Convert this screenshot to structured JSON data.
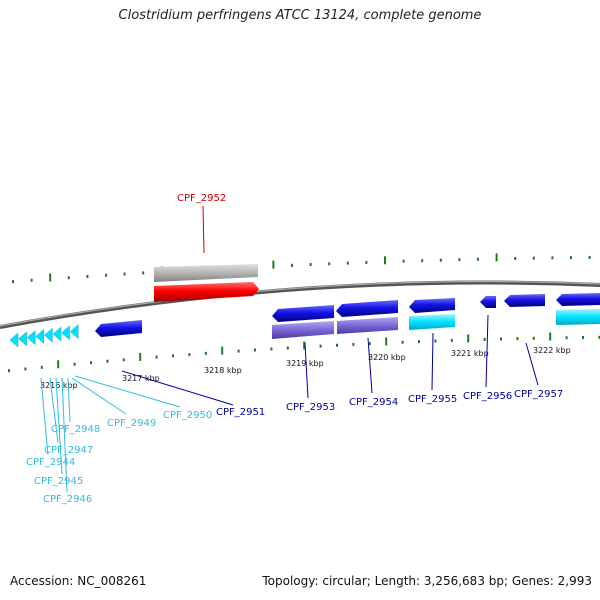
{
  "title": "Clostridium perfringens ATCC 13124, complete genome",
  "footer": {
    "accession": "Accession: NC_008261",
    "topology": "Topology: circular; Length: 3,256,683 bp; Genes: 2,993"
  },
  "kbp_labels": [
    "3216 kbp",
    "3217 kbp",
    "3218 kbp",
    "3219 kbp",
    "3220 kbp",
    "3221 kbp",
    "3222 kbp"
  ],
  "genes": [
    {
      "id": "CPF_2944",
      "color": "#33bbdd"
    },
    {
      "id": "CPF_2945",
      "color": "#33bbdd"
    },
    {
      "id": "CPF_2946",
      "color": "#33bbdd"
    },
    {
      "id": "CPF_2947",
      "color": "#33bbdd"
    },
    {
      "id": "CPF_2948",
      "color": "#33bbdd"
    },
    {
      "id": "CPF_2949",
      "color": "#33bbdd"
    },
    {
      "id": "CPF_2950",
      "color": "#33bbdd"
    },
    {
      "id": "CPF_2951",
      "color": "#000099"
    },
    {
      "id": "CPF_2952",
      "color": "#cc0000"
    },
    {
      "id": "CPF_2953",
      "color": "#000099"
    },
    {
      "id": "CPF_2954",
      "color": "#000099"
    },
    {
      "id": "CPF_2955",
      "color": "#000099"
    },
    {
      "id": "CPF_2956",
      "color": "#000099"
    },
    {
      "id": "CPF_2957",
      "color": "#000099"
    }
  ],
  "colors": {
    "backbone": "#777777",
    "tick": "#1e7a1e",
    "cds_blue": "#1414e6",
    "cds_red": "#ff0000",
    "cds_grey": "#b4b4b4",
    "cds_cyan": "#00e0ff",
    "cds_purple": "#7b68d6",
    "leader_cyan": "#33bbdd",
    "leader_blue": "#000099",
    "leader_red": "#cc0000"
  }
}
